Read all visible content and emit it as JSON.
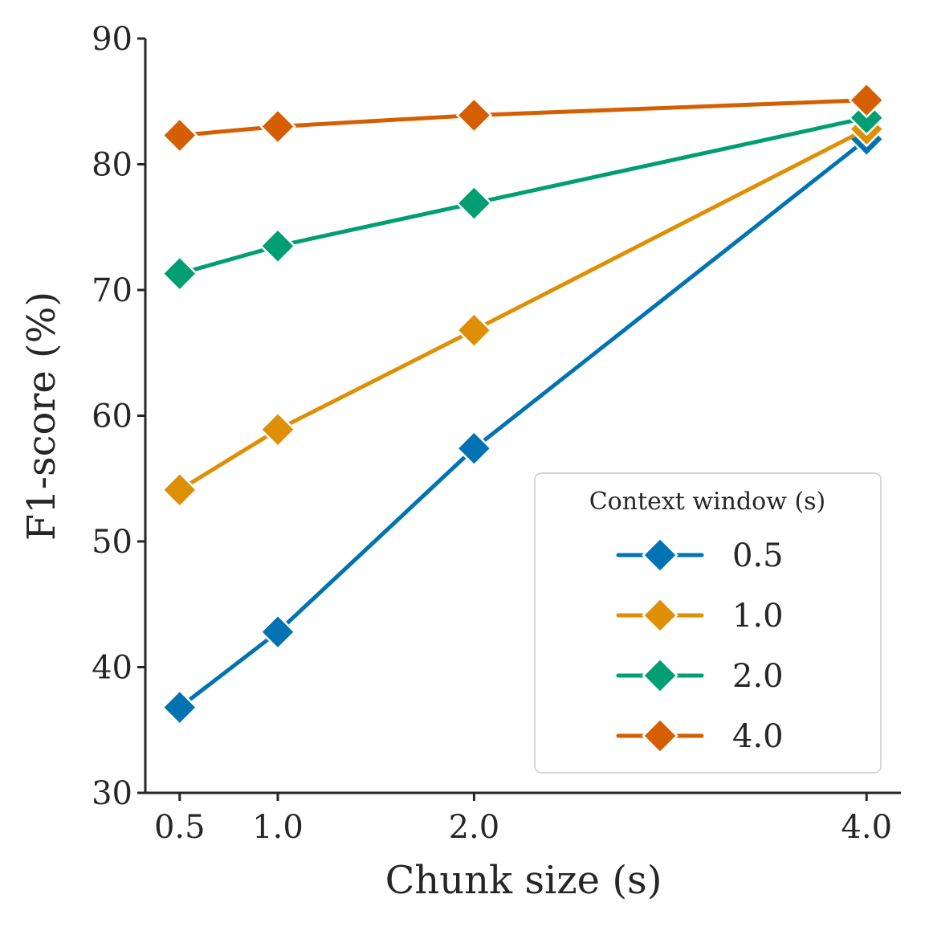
{
  "chart_data": {
    "type": "line",
    "xlabel": "Chunk size (s)",
    "ylabel": "F1-score (%)",
    "x": [
      0.5,
      1.0,
      2.0,
      4.0
    ],
    "x_tick_labels": [
      "0.5",
      "1.0",
      "2.0",
      "4.0"
    ],
    "ylim": [
      30,
      90
    ],
    "y_ticks": [
      30,
      40,
      50,
      60,
      70,
      80,
      90
    ],
    "y_tick_labels": [
      "30",
      "40",
      "50",
      "60",
      "70",
      "80",
      "90"
    ],
    "marker": "diamond",
    "grid": false,
    "legend": {
      "title": "Context window (s)",
      "position": "lower-right"
    },
    "series": [
      {
        "name": "0.5",
        "color": "#0173b2",
        "values": [
          36.8,
          42.8,
          57.4,
          82.0
        ]
      },
      {
        "name": "1.0",
        "color": "#de8f05",
        "values": [
          54.1,
          58.9,
          66.8,
          82.8
        ]
      },
      {
        "name": "2.0",
        "color": "#029e73",
        "values": [
          71.3,
          73.5,
          76.9,
          83.7
        ]
      },
      {
        "name": "4.0",
        "color": "#d55e00",
        "values": [
          82.3,
          83.0,
          83.9,
          85.1
        ]
      }
    ]
  }
}
